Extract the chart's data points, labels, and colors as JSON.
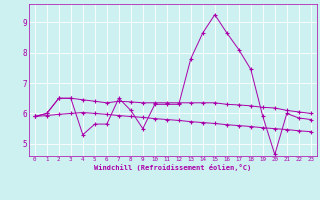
{
  "xlabel": "Windchill (Refroidissement éolien,°C)",
  "bg_color": "#cdf0f0",
  "line_color": "#aa00aa",
  "marker": "+",
  "xlim": [
    -0.5,
    23.5
  ],
  "ylim": [
    4.6,
    9.6
  ],
  "yticks": [
    5,
    6,
    7,
    8,
    9
  ],
  "xticks": [
    0,
    1,
    2,
    3,
    4,
    5,
    6,
    7,
    8,
    9,
    10,
    11,
    12,
    13,
    14,
    15,
    16,
    17,
    18,
    19,
    20,
    21,
    22,
    23
  ],
  "series1": [
    5.9,
    6.0,
    6.5,
    6.5,
    5.3,
    5.65,
    5.65,
    6.5,
    6.1,
    5.5,
    6.3,
    6.3,
    6.3,
    7.8,
    8.65,
    9.25,
    8.65,
    8.1,
    7.45,
    5.9,
    4.65,
    6.0,
    5.85,
    5.8
  ],
  "series2": [
    5.9,
    6.0,
    6.5,
    6.5,
    6.45,
    6.4,
    6.35,
    6.4,
    6.38,
    6.35,
    6.35,
    6.35,
    6.35,
    6.35,
    6.35,
    6.35,
    6.3,
    6.28,
    6.25,
    6.2,
    6.18,
    6.1,
    6.05,
    6.0
  ],
  "series3": [
    5.9,
    5.93,
    5.97,
    6.0,
    6.03,
    6.0,
    5.97,
    5.93,
    5.9,
    5.87,
    5.83,
    5.8,
    5.77,
    5.73,
    5.7,
    5.67,
    5.63,
    5.6,
    5.57,
    5.53,
    5.5,
    5.47,
    5.43,
    5.4
  ]
}
